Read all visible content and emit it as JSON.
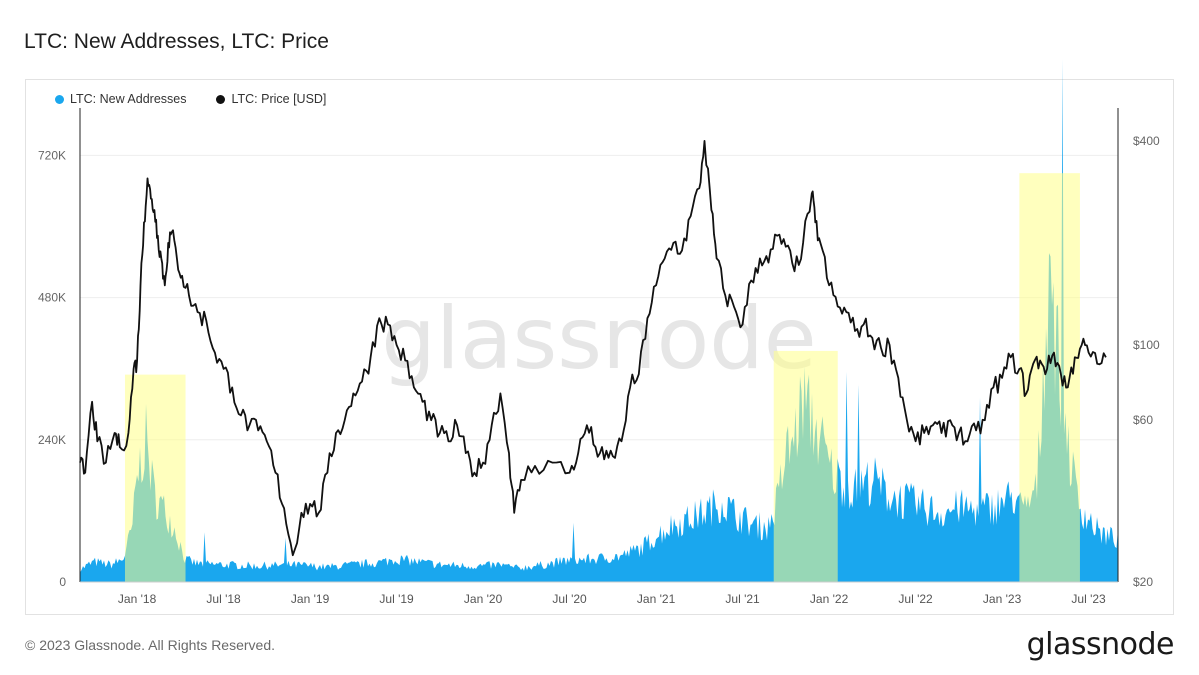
{
  "page": {
    "title": "LTC: New Addresses, LTC: Price",
    "footer": "© 2023 Glassnode. All Rights Reserved.",
    "brand": "glassnode",
    "watermark": "glassnode"
  },
  "colors": {
    "addresses": "#1aa7ee",
    "price": "#111111",
    "highlight": "#ffff88",
    "overlap": "#6fd0b4"
  },
  "chart_data": {
    "type": "area",
    "title": "LTC: New Addresses, LTC: Price",
    "legend": [
      {
        "label": "LTC: New Addresses",
        "color": "#1aa7ee"
      },
      {
        "label": "LTC: Price [USD]",
        "color": "#111111"
      }
    ],
    "x_range": [
      2017.67,
      2023.67
    ],
    "x_ticks": [
      {
        "t": 2018.0,
        "label": "Jan '18"
      },
      {
        "t": 2018.5,
        "label": "Jul '18"
      },
      {
        "t": 2019.0,
        "label": "Jan '19"
      },
      {
        "t": 2019.5,
        "label": "Jul '19"
      },
      {
        "t": 2020.0,
        "label": "Jan '20"
      },
      {
        "t": 2020.5,
        "label": "Jul '20"
      },
      {
        "t": 2021.0,
        "label": "Jan '21"
      },
      {
        "t": 2021.5,
        "label": "Jul '21"
      },
      {
        "t": 2022.0,
        "label": "Jan '22"
      },
      {
        "t": 2022.5,
        "label": "Jul '22"
      },
      {
        "t": 2023.0,
        "label": "Jan '23"
      },
      {
        "t": 2023.5,
        "label": "Jul '23"
      }
    ],
    "y_left": {
      "min": 0,
      "max": 800000,
      "ticks": [
        {
          "v": 0,
          "label": "0"
        },
        {
          "v": 240000,
          "label": "240K"
        },
        {
          "v": 480000,
          "label": "480K"
        },
        {
          "v": 720000,
          "label": "720K"
        }
      ]
    },
    "y_right": {
      "scale": "log",
      "min": 20,
      "max": 500,
      "ticks": [
        {
          "v": 20,
          "label": "$20"
        },
        {
          "v": 60,
          "label": "$60"
        },
        {
          "v": 100,
          "label": "$100"
        },
        {
          "v": 400,
          "label": "$400"
        }
      ]
    },
    "highlights": [
      {
        "start": 2017.93,
        "end": 2018.28,
        "top": 350000
      },
      {
        "start": 2021.68,
        "end": 2022.05,
        "top": 390000
      },
      {
        "start": 2023.1,
        "end": 2023.45,
        "top": 690000
      }
    ],
    "series": [
      {
        "name": "LTC: New Addresses",
        "unit": "addresses",
        "points": [
          [
            2017.67,
            22000
          ],
          [
            2017.75,
            35000
          ],
          [
            2017.85,
            30000
          ],
          [
            2017.92,
            40000
          ],
          [
            2017.97,
            90000
          ],
          [
            2018.0,
            180000
          ],
          [
            2018.05,
            250000
          ],
          [
            2018.1,
            150000
          ],
          [
            2018.17,
            120000
          ],
          [
            2018.22,
            90000
          ],
          [
            2018.28,
            38000
          ],
          [
            2018.35,
            32000
          ],
          [
            2018.5,
            30000
          ],
          [
            2018.7,
            28000
          ],
          [
            2018.9,
            30000
          ],
          [
            2019.0,
            28000
          ],
          [
            2019.1,
            26000
          ],
          [
            2019.25,
            30000
          ],
          [
            2019.4,
            34000
          ],
          [
            2019.5,
            40000
          ],
          [
            2019.6,
            36000
          ],
          [
            2019.75,
            30000
          ],
          [
            2019.9,
            28000
          ],
          [
            2020.0,
            28000
          ],
          [
            2020.1,
            30000
          ],
          [
            2020.2,
            24000
          ],
          [
            2020.35,
            30000
          ],
          [
            2020.5,
            38000
          ],
          [
            2020.65,
            40000
          ],
          [
            2020.8,
            45000
          ],
          [
            2020.92,
            60000
          ],
          [
            2021.0,
            80000
          ],
          [
            2021.1,
            100000
          ],
          [
            2021.2,
            110000
          ],
          [
            2021.3,
            125000
          ],
          [
            2021.38,
            140000
          ],
          [
            2021.45,
            120000
          ],
          [
            2021.55,
            100000
          ],
          [
            2021.65,
            95000
          ],
          [
            2021.7,
            140000
          ],
          [
            2021.75,
            220000
          ],
          [
            2021.8,
            250000
          ],
          [
            2021.85,
            320000
          ],
          [
            2021.9,
            280000
          ],
          [
            2021.95,
            250000
          ],
          [
            2022.0,
            200000
          ],
          [
            2022.05,
            180000
          ],
          [
            2022.15,
            160000
          ],
          [
            2022.25,
            180000
          ],
          [
            2022.35,
            150000
          ],
          [
            2022.45,
            140000
          ],
          [
            2022.55,
            130000
          ],
          [
            2022.65,
            120000
          ],
          [
            2022.75,
            130000
          ],
          [
            2022.85,
            125000
          ],
          [
            2022.95,
            130000
          ],
          [
            2023.0,
            140000
          ],
          [
            2023.08,
            150000
          ],
          [
            2023.12,
            120000
          ],
          [
            2023.16,
            140000
          ],
          [
            2023.2,
            160000
          ],
          [
            2023.25,
            420000
          ],
          [
            2023.28,
            600000
          ],
          [
            2023.3,
            450000
          ],
          [
            2023.33,
            380000
          ],
          [
            2023.36,
            300000
          ],
          [
            2023.4,
            200000
          ],
          [
            2023.45,
            130000
          ],
          [
            2023.5,
            110000
          ],
          [
            2023.55,
            90000
          ],
          [
            2023.6,
            80000
          ],
          [
            2023.67,
            75000
          ]
        ]
      },
      {
        "name": "LTC: Price [USD]",
        "unit": "USD",
        "points": [
          [
            2017.67,
            45
          ],
          [
            2017.7,
            42
          ],
          [
            2017.74,
            68
          ],
          [
            2017.77,
            52
          ],
          [
            2017.82,
            45
          ],
          [
            2017.87,
            55
          ],
          [
            2017.9,
            50
          ],
          [
            2017.95,
            55
          ],
          [
            2017.98,
            85
          ],
          [
            2018.0,
            90
          ],
          [
            2018.02,
            150
          ],
          [
            2018.04,
            230
          ],
          [
            2018.06,
            310
          ],
          [
            2018.08,
            270
          ],
          [
            2018.1,
            250
          ],
          [
            2018.12,
            210
          ],
          [
            2018.14,
            180
          ],
          [
            2018.16,
            150
          ],
          [
            2018.18,
            200
          ],
          [
            2018.2,
            215
          ],
          [
            2018.23,
            180
          ],
          [
            2018.26,
            160
          ],
          [
            2018.3,
            140
          ],
          [
            2018.35,
            125
          ],
          [
            2018.4,
            118
          ],
          [
            2018.45,
            95
          ],
          [
            2018.5,
            85
          ],
          [
            2018.55,
            75
          ],
          [
            2018.6,
            62
          ],
          [
            2018.65,
            58
          ],
          [
            2018.7,
            56
          ],
          [
            2018.75,
            52
          ],
          [
            2018.8,
            42
          ],
          [
            2018.85,
            33
          ],
          [
            2018.9,
            24
          ],
          [
            2018.95,
            32
          ],
          [
            2019.0,
            34
          ],
          [
            2019.05,
            32
          ],
          [
            2019.1,
            42
          ],
          [
            2019.15,
            55
          ],
          [
            2019.2,
            60
          ],
          [
            2019.25,
            72
          ],
          [
            2019.3,
            78
          ],
          [
            2019.35,
            92
          ],
          [
            2019.4,
            120
          ],
          [
            2019.45,
            115
          ],
          [
            2019.5,
            100
          ],
          [
            2019.55,
            90
          ],
          [
            2019.6,
            75
          ],
          [
            2019.65,
            68
          ],
          [
            2019.7,
            60
          ],
          [
            2019.75,
            55
          ],
          [
            2019.8,
            52
          ],
          [
            2019.85,
            58
          ],
          [
            2019.9,
            48
          ],
          [
            2019.95,
            42
          ],
          [
            2020.0,
            45
          ],
          [
            2020.05,
            58
          ],
          [
            2020.1,
            72
          ],
          [
            2020.15,
            48
          ],
          [
            2020.18,
            32
          ],
          [
            2020.22,
            40
          ],
          [
            2020.3,
            44
          ],
          [
            2020.4,
            45
          ],
          [
            2020.5,
            42
          ],
          [
            2020.55,
            48
          ],
          [
            2020.6,
            58
          ],
          [
            2020.65,
            50
          ],
          [
            2020.7,
            46
          ],
          [
            2020.75,
            47
          ],
          [
            2020.8,
            52
          ],
          [
            2020.85,
            75
          ],
          [
            2020.9,
            82
          ],
          [
            2020.95,
            120
          ],
          [
            2021.0,
            150
          ],
          [
            2021.05,
            180
          ],
          [
            2021.1,
            200
          ],
          [
            2021.15,
            190
          ],
          [
            2021.2,
            240
          ],
          [
            2021.25,
            290
          ],
          [
            2021.28,
            400
          ],
          [
            2021.32,
            250
          ],
          [
            2021.35,
            180
          ],
          [
            2021.4,
            140
          ],
          [
            2021.45,
            130
          ],
          [
            2021.5,
            115
          ],
          [
            2021.55,
            155
          ],
          [
            2021.6,
            180
          ],
          [
            2021.65,
            175
          ],
          [
            2021.7,
            210
          ],
          [
            2021.75,
            195
          ],
          [
            2021.8,
            165
          ],
          [
            2021.85,
            200
          ],
          [
            2021.9,
            280
          ],
          [
            2021.92,
            230
          ],
          [
            2021.95,
            200
          ],
          [
            2022.0,
            150
          ],
          [
            2022.05,
            130
          ],
          [
            2022.1,
            125
          ],
          [
            2022.15,
            110
          ],
          [
            2022.2,
            115
          ],
          [
            2022.25,
            105
          ],
          [
            2022.3,
            98
          ],
          [
            2022.35,
            100
          ],
          [
            2022.4,
            80
          ],
          [
            2022.45,
            60
          ],
          [
            2022.5,
            52
          ],
          [
            2022.55,
            55
          ],
          [
            2022.6,
            58
          ],
          [
            2022.65,
            55
          ],
          [
            2022.7,
            60
          ],
          [
            2022.75,
            55
          ],
          [
            2022.8,
            52
          ],
          [
            2022.85,
            56
          ],
          [
            2022.9,
            60
          ],
          [
            2022.95,
            75
          ],
          [
            2023.0,
            80
          ],
          [
            2023.05,
            92
          ],
          [
            2023.1,
            85
          ],
          [
            2023.14,
            72
          ],
          [
            2023.18,
            88
          ],
          [
            2023.22,
            90
          ],
          [
            2023.26,
            85
          ],
          [
            2023.3,
            95
          ],
          [
            2023.34,
            82
          ],
          [
            2023.38,
            75
          ],
          [
            2023.42,
            92
          ],
          [
            2023.46,
            100
          ],
          [
            2023.5,
            95
          ],
          [
            2023.55,
            88
          ],
          [
            2023.6,
            92
          ]
        ]
      }
    ]
  }
}
